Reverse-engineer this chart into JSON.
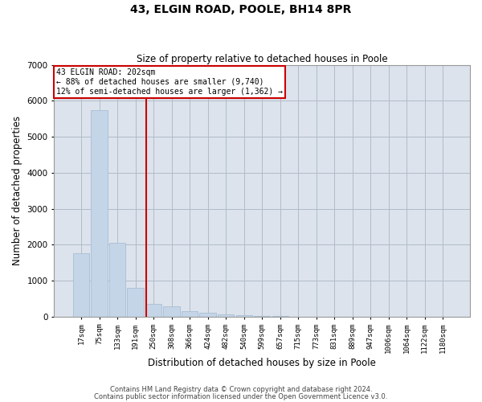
{
  "title": "43, ELGIN ROAD, POOLE, BH14 8PR",
  "subtitle": "Size of property relative to detached houses in Poole",
  "xlabel": "Distribution of detached houses by size in Poole",
  "ylabel": "Number of detached properties",
  "categories": [
    "17sqm",
    "75sqm",
    "133sqm",
    "191sqm",
    "250sqm",
    "308sqm",
    "366sqm",
    "424sqm",
    "482sqm",
    "540sqm",
    "599sqm",
    "657sqm",
    "715sqm",
    "773sqm",
    "831sqm",
    "889sqm",
    "947sqm",
    "1006sqm",
    "1064sqm",
    "1122sqm",
    "1180sqm"
  ],
  "values": [
    1750,
    5750,
    2050,
    800,
    350,
    280,
    150,
    110,
    65,
    40,
    10,
    5,
    3,
    1,
    1,
    0,
    0,
    0,
    0,
    0,
    0
  ],
  "bar_color": "#c5d5e8",
  "bar_edge_color": "#a0b8d0",
  "grid_color": "#b0bcc8",
  "background_color": "#ffffff",
  "plot_bg_color": "#dce3ec",
  "annotation_text": "43 ELGIN ROAD: 202sqm\n← 88% of detached houses are smaller (9,740)\n12% of semi-detached houses are larger (1,362) →",
  "annotation_box_color": "#ffffff",
  "annotation_border_color": "#cc0000",
  "vline_x": 3.58,
  "vline_color": "#cc0000",
  "ylim": [
    0,
    7000
  ],
  "yticks": [
    0,
    1000,
    2000,
    3000,
    4000,
    5000,
    6000,
    7000
  ],
  "footer1": "Contains HM Land Registry data © Crown copyright and database right 2024.",
  "footer2": "Contains public sector information licensed under the Open Government Licence v3.0."
}
